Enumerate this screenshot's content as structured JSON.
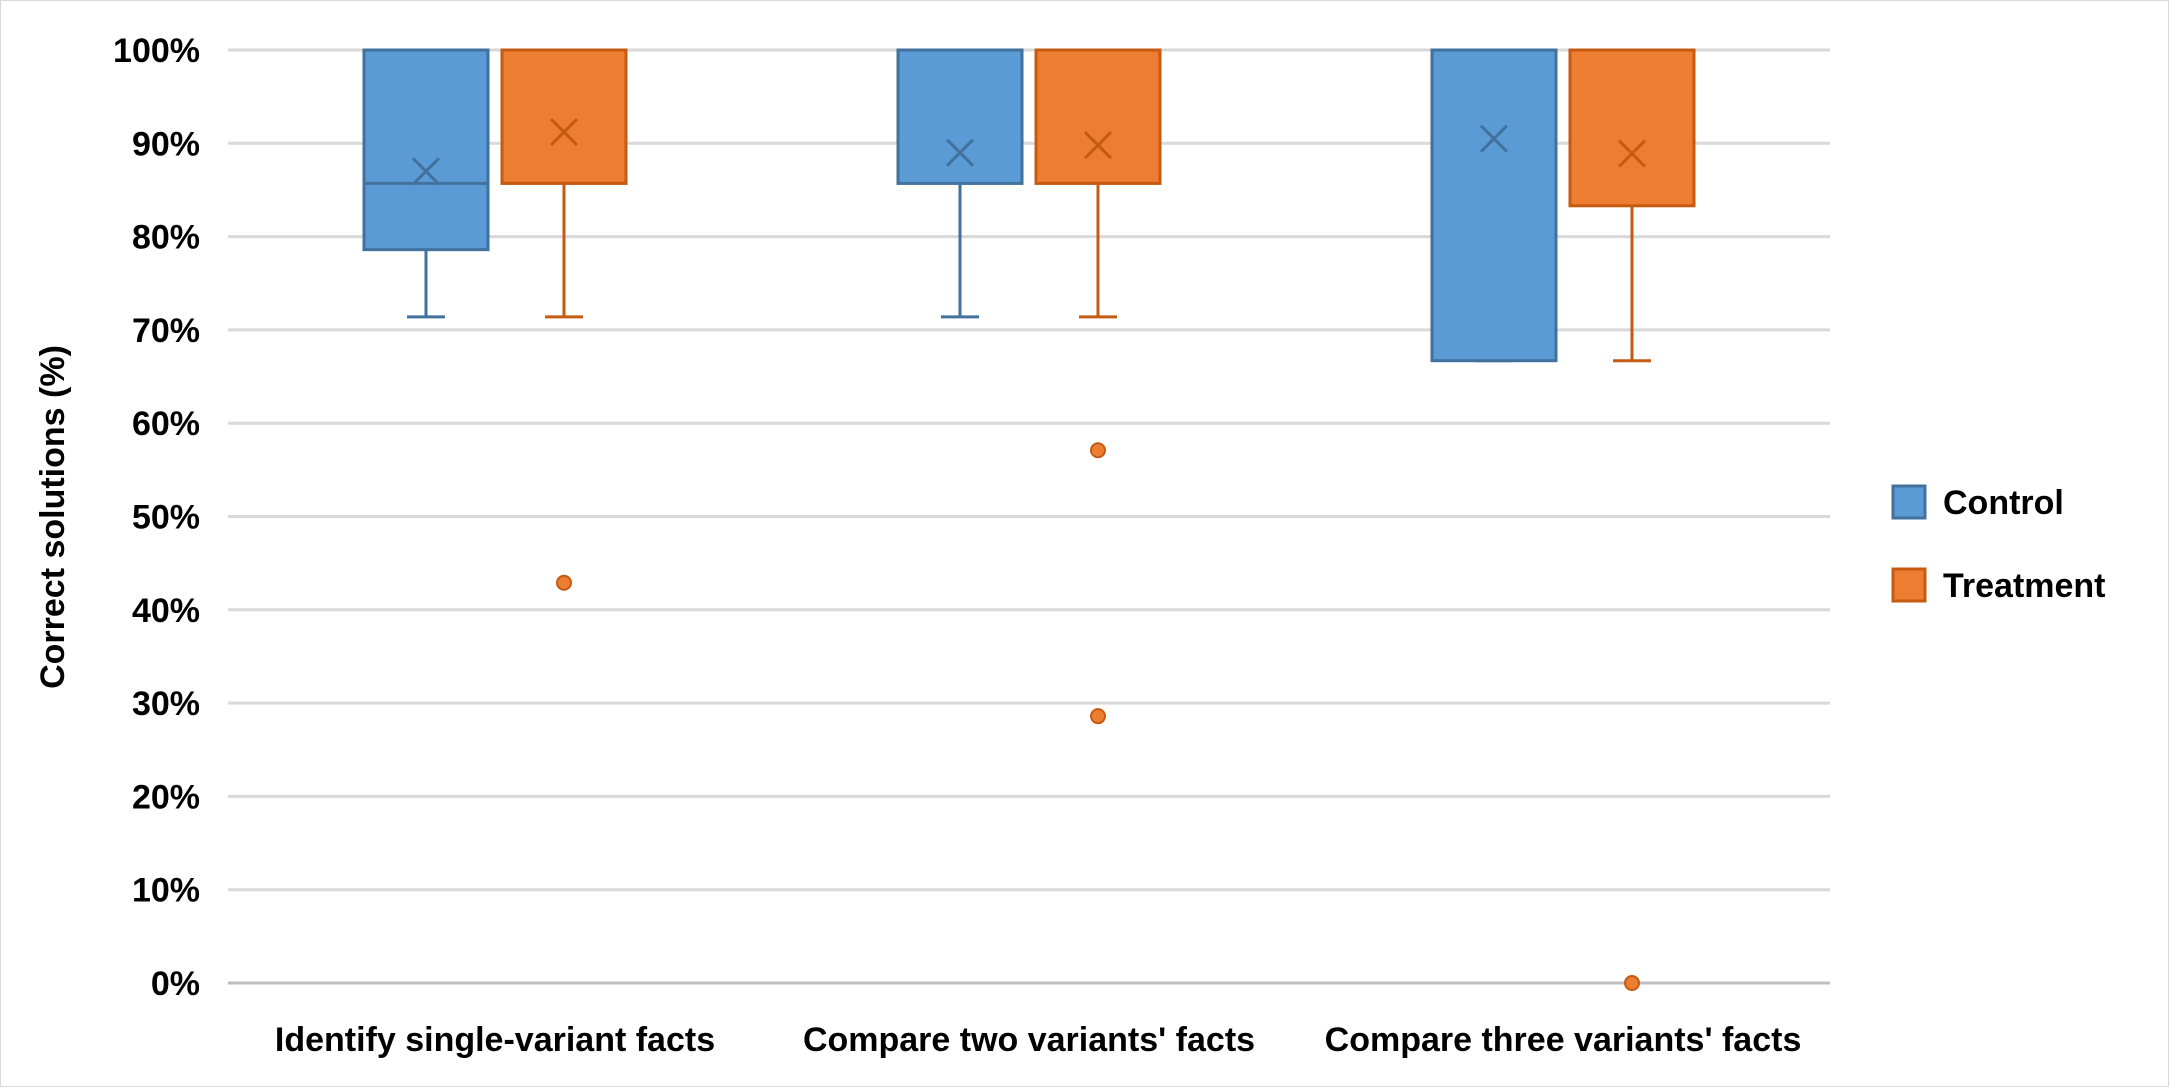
{
  "chart_data": {
    "type": "box",
    "title": "",
    "xlabel": "",
    "ylabel": "Correct solutions (%)",
    "ylim": [
      0,
      100
    ],
    "yticks": [
      "0%",
      "10%",
      "20%",
      "30%",
      "40%",
      "50%",
      "60%",
      "70%",
      "80%",
      "90%",
      "100%"
    ],
    "categories": [
      "Identify single-variant facts",
      "Compare two variants' facts",
      "Compare three variants' facts"
    ],
    "legend_position": "right",
    "grid": true,
    "series": [
      {
        "name": "Control",
        "color": "#5b9bd5",
        "edge": "#41719c",
        "boxes": [
          {
            "min": 71.4,
            "q1": 78.6,
            "median": 85.7,
            "q3": 100,
            "max": 100,
            "mean": 87.0,
            "outliers": []
          },
          {
            "min": 71.4,
            "q1": 85.7,
            "median": 100,
            "q3": 100,
            "max": 100,
            "mean": 89.0,
            "outliers": []
          },
          {
            "min": 66.7,
            "q1": 66.7,
            "median": 100,
            "q3": 100,
            "max": 100,
            "mean": 90.5,
            "outliers": []
          }
        ]
      },
      {
        "name": "Treatment",
        "color": "#ed7d31",
        "edge": "#c55a11",
        "boxes": [
          {
            "min": 71.4,
            "q1": 85.7,
            "median": 100,
            "q3": 100,
            "max": 100,
            "mean": 91.2,
            "outliers": [
              42.9
            ]
          },
          {
            "min": 71.4,
            "q1": 85.7,
            "median": 100,
            "q3": 100,
            "max": 100,
            "mean": 89.8,
            "outliers": [
              57.1,
              28.6
            ]
          },
          {
            "min": 66.7,
            "q1": 83.3,
            "median": 100,
            "q3": 100,
            "max": 100,
            "mean": 88.9,
            "outliers": [
              0
            ]
          }
        ]
      }
    ]
  }
}
